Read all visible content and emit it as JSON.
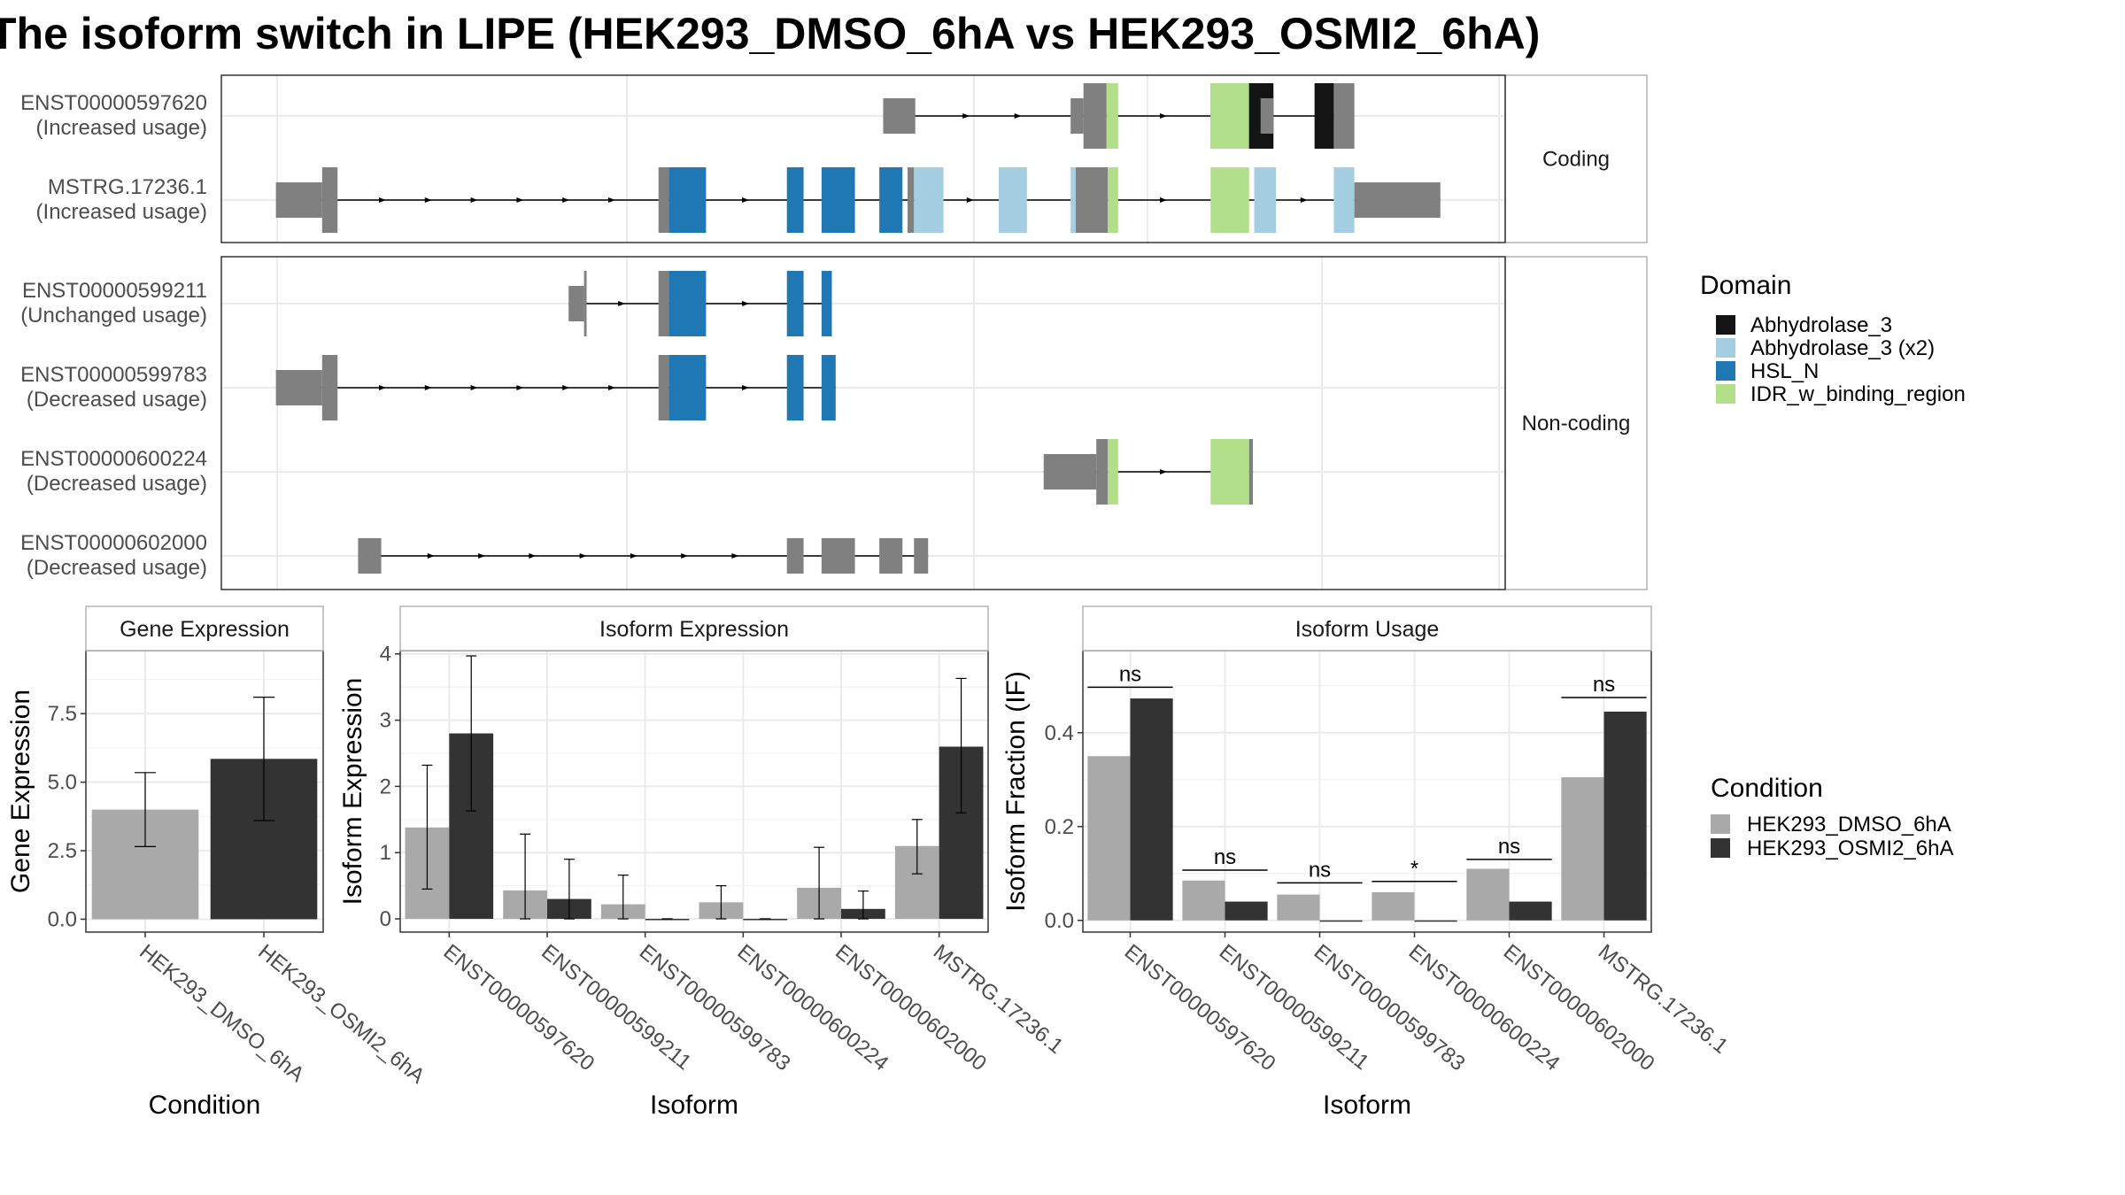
{
  "title": "The isoform switch in LIPE (HEK293_DMSO_6hA vs HEK293_OSMI2_6hA)",
  "colors": {
    "exon": "#808080",
    "domains": {
      "Abhydrolase_3": "#141414",
      "Abhydrolase_3 (x2)": "#a6cee3",
      "HSL_N": "#1f78b4",
      "IDR_w_binding_region": "#b2df8a"
    },
    "conditions": {
      "HEK293_DMSO_6hA": "#a9a9a9",
      "HEK293_OSMI2_6hA": "#333333"
    }
  },
  "structure": {
    "groups": [
      {
        "label": "Coding",
        "isoforms": [
          {
            "id": "ENST00000597620",
            "usage": "(Increased usage)",
            "utr": [
              [
                0.5155,
                0.5405
              ],
              [
                0.6615,
                0.6715
              ],
              [
                0.8095,
                0.8195
              ]
            ],
            "cds": [
              [
                0.6715,
                0.6895
              ],
              [
                0.7705,
                0.8095
              ]
            ],
            "domains": [
              [
                0.6895,
                0.6985,
                "IDR_w_binding_region"
              ],
              [
                0.7705,
                0.8005,
                "IDR_w_binding_region"
              ],
              [
                0.8005,
                0.8195,
                "Abhydrolase_3"
              ],
              [
                0.8515,
                0.8665,
                "Abhydrolase_3"
              ],
              [
                0.8665,
                0.8825,
                "exon"
              ]
            ]
          },
          {
            "id": "MSTRG.17236.1",
            "usage": "(Increased usage)",
            "utr": [
              [
                0.0425,
                0.0785
              ],
              [
                0.8825,
                0.9495
              ]
            ],
            "cds": [
              [
                0.0785,
                0.0905
              ],
              [
                0.3405,
                0.3485
              ],
              [
                0.5345,
                0.5395
              ],
              [
                0.6655,
                0.6905
              ]
            ],
            "domains": [
              [
                0.3485,
                0.3775,
                "HSL_N"
              ],
              [
                0.4405,
                0.4535,
                "HSL_N"
              ],
              [
                0.4675,
                0.4935,
                "HSL_N"
              ],
              [
                0.5125,
                0.5305,
                "HSL_N"
              ],
              [
                0.5395,
                0.5625,
                "Abhydrolase_3 (x2)"
              ],
              [
                0.6055,
                0.6275,
                "Abhydrolase_3 (x2)"
              ],
              [
                0.6615,
                0.6655,
                "Abhydrolase_3 (x2)"
              ],
              [
                0.6905,
                0.6985,
                "IDR_w_binding_region"
              ],
              [
                0.7705,
                0.8005,
                "IDR_w_binding_region"
              ],
              [
                0.8045,
                0.8215,
                "Abhydrolase_3 (x2)"
              ],
              [
                0.8665,
                0.8825,
                "Abhydrolase_3 (x2)"
              ]
            ]
          }
        ]
      },
      {
        "label": "Non-coding",
        "isoforms": [
          {
            "id": "ENST00000599211",
            "usage": "(Unchanged usage)",
            "utr": [
              [
                0.2705,
                0.2825
              ]
            ],
            "cds": [
              [
                0.2825,
                0.2845
              ],
              [
                0.3405,
                0.3485
              ]
            ],
            "domains": [
              [
                0.3485,
                0.3775,
                "HSL_N"
              ],
              [
                0.4405,
                0.4535,
                "HSL_N"
              ],
              [
                0.4675,
                0.4755,
                "HSL_N"
              ]
            ]
          },
          {
            "id": "ENST00000599783",
            "usage": "(Decreased usage)",
            "utr": [
              [
                0.0425,
                0.0785
              ]
            ],
            "cds": [
              [
                0.0785,
                0.0905
              ],
              [
                0.3405,
                0.3485
              ]
            ],
            "domains": [
              [
                0.3485,
                0.3775,
                "HSL_N"
              ],
              [
                0.4405,
                0.4535,
                "HSL_N"
              ],
              [
                0.4675,
                0.4785,
                "HSL_N"
              ]
            ]
          },
          {
            "id": "ENST00000600224",
            "usage": "(Decreased usage)",
            "utr": [
              [
                0.6405,
                0.6815
              ]
            ],
            "cds": [
              [
                0.6815,
                0.6905
              ],
              [
                0.8005,
                0.8035
              ]
            ],
            "domains": [
              [
                0.6905,
                0.6985,
                "IDR_w_binding_region"
              ],
              [
                0.7705,
                0.8005,
                "IDR_w_binding_region"
              ]
            ]
          },
          {
            "id": "ENST00000602000",
            "usage": "(Decreased usage)",
            "utr": [
              [
                0.1065,
                0.1245
              ],
              [
                0.4405,
                0.4535
              ],
              [
                0.4675,
                0.4935
              ],
              [
                0.5125,
                0.5305
              ],
              [
                0.5395,
                0.5505
              ]
            ],
            "cds": [],
            "domains": []
          }
        ]
      }
    ]
  },
  "legends": {
    "domain_title": "Domain",
    "domain_items": [
      "Abhydrolase_3",
      "Abhydrolase_3 (x2)",
      "HSL_N",
      "IDR_w_binding_region"
    ],
    "condition_title": "Condition",
    "condition_items": [
      "HEK293_DMSO_6hA",
      "HEK293_OSMI2_6hA"
    ]
  },
  "chart_data": [
    {
      "type": "bar",
      "title": "Gene Expression",
      "xlabel": "Condition",
      "ylabel": "Gene Expression",
      "categories": [
        "HEK293_DMSO_6hA",
        "HEK293_OSMI2_6hA"
      ],
      "values": [
        4.0,
        5.85
      ],
      "error_low": [
        2.65,
        3.6
      ],
      "error_high": [
        5.35,
        8.1
      ],
      "ylim": [
        -0.47,
        9.8
      ],
      "yticks": [
        0.0,
        2.5,
        5.0,
        7.5
      ],
      "ytick_labels": [
        "0.0",
        "2.5",
        "5.0",
        "7.5"
      ]
    },
    {
      "type": "bar",
      "title": "Isoform Expression",
      "xlabel": "Isoform",
      "ylabel": "Isoform Expression",
      "categories": [
        "ENST00000597620",
        "ENST00000599211",
        "ENST00000599783",
        "ENST00000600224",
        "ENST00000602000",
        "MSTRG.17236.1"
      ],
      "series": [
        {
          "name": "HEK293_DMSO_6hA",
          "values": [
            1.38,
            0.43,
            0.22,
            0.25,
            0.47,
            1.1
          ],
          "error_low": [
            0.45,
            0.0,
            0.0,
            0.0,
            0.0,
            0.68
          ],
          "error_high": [
            2.32,
            1.28,
            0.66,
            0.5,
            1.08,
            1.5
          ]
        },
        {
          "name": "HEK293_OSMI2_6hA",
          "values": [
            2.8,
            0.3,
            0.0,
            0.0,
            0.15,
            2.6
          ],
          "error_low": [
            1.63,
            0.0,
            0.0,
            0.0,
            0.0,
            1.6
          ],
          "error_high": [
            3.97,
            0.9,
            0.0,
            0.0,
            0.42,
            3.63
          ]
        }
      ],
      "ylim": [
        -0.2,
        4.05
      ],
      "yticks": [
        0,
        1,
        2,
        3,
        4
      ],
      "ytick_labels": [
        "0",
        "1",
        "2",
        "3",
        "4"
      ]
    },
    {
      "type": "bar",
      "title": "Isoform Usage",
      "xlabel": "Isoform",
      "ylabel": "Isoform Fraction (IF)",
      "categories": [
        "ENST00000597620",
        "ENST00000599211",
        "ENST00000599783",
        "ENST00000600224",
        "ENST00000602000",
        "MSTRG.17236.1"
      ],
      "series": [
        {
          "name": "HEK293_DMSO_6hA",
          "values": [
            0.35,
            0.085,
            0.055,
            0.06,
            0.11,
            0.305
          ]
        },
        {
          "name": "HEK293_OSMI2_6hA",
          "values": [
            0.473,
            0.04,
            0.0,
            0.0,
            0.04,
            0.445
          ]
        }
      ],
      "significance": [
        {
          "label": "ns",
          "y": 0.497
        },
        {
          "label": "ns",
          "y": 0.107
        },
        {
          "label": "ns",
          "y": 0.08
        },
        {
          "label": "*",
          "y": 0.083
        },
        {
          "label": "ns",
          "y": 0.13
        },
        {
          "label": "ns",
          "y": 0.475
        }
      ],
      "ylim": [
        -0.025,
        0.575
      ],
      "yticks": [
        0.0,
        0.2,
        0.4
      ],
      "ytick_labels": [
        "0.0",
        "0.2",
        "0.4"
      ]
    }
  ]
}
